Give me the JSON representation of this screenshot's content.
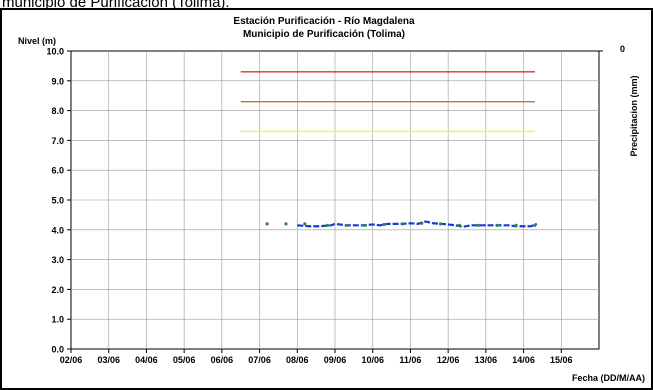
{
  "caption": "municipio de Purificación (Tolima).",
  "chart_data": {
    "type": "line",
    "title": "Estación Purificación - Río Magdalena",
    "subtitle": "Municipio de Purificación (Tolima)",
    "ylabel": "Nivel (m)",
    "y2label": "Precipitacion (mm)",
    "xlabel": "Fecha (DD/M/AA)",
    "ylim": [
      0,
      10
    ],
    "yticks": [
      "0.0",
      "1.0",
      "2.0",
      "3.0",
      "4.0",
      "5.0",
      "6.0",
      "7.0",
      "8.0",
      "9.0",
      "10.0"
    ],
    "y2_tick": "0",
    "x_categories": [
      "02/06",
      "03/06",
      "04/06",
      "05/06",
      "06/06",
      "07/06",
      "08/06",
      "09/06",
      "10/06",
      "11/06",
      "12/06",
      "13/06",
      "14/06",
      "15/06"
    ],
    "grid": true,
    "threshold_lines": [
      {
        "color": "#e03030",
        "value": 9.3,
        "start_day": 6.5,
        "end_day": 14.3
      },
      {
        "color": "#b07848",
        "value": 8.3,
        "start_day": 6.5,
        "end_day": 14.3
      },
      {
        "color": "#f2f24a",
        "value": 7.3,
        "start_day": 6.5,
        "end_day": 14.3
      }
    ],
    "series": [
      {
        "kind": "line",
        "color": "#1a3ad8",
        "x_day": [
          8.0,
          8.3,
          8.6,
          8.9,
          9.0,
          9.3,
          9.5,
          9.8,
          10.0,
          10.2,
          10.4,
          10.6,
          10.8,
          11.0,
          11.2,
          11.4,
          11.6,
          11.8,
          12.0,
          12.2,
          12.4,
          12.6,
          12.8,
          13.0,
          13.2,
          13.4,
          13.6,
          13.8,
          14.0,
          14.2,
          14.35
        ],
        "values": [
          4.15,
          4.12,
          4.12,
          4.15,
          4.2,
          4.15,
          4.15,
          4.15,
          4.18,
          4.15,
          4.2,
          4.2,
          4.2,
          4.22,
          4.2,
          4.28,
          4.22,
          4.2,
          4.18,
          4.15,
          4.1,
          4.15,
          4.15,
          4.15,
          4.15,
          4.15,
          4.15,
          4.12,
          4.12,
          4.12,
          4.2
        ]
      },
      {
        "kind": "scatter",
        "color": "#2e8b2e",
        "x_day": [
          7.2,
          7.7,
          8.2,
          8.8,
          9.3,
          9.8,
          10.3,
          10.8,
          11.3,
          11.8,
          12.3,
          12.8,
          13.3,
          13.8,
          14.3
        ],
        "values": [
          4.2,
          4.2,
          4.2,
          4.15,
          4.15,
          4.15,
          4.18,
          4.2,
          4.22,
          4.2,
          4.15,
          4.15,
          4.15,
          4.15,
          4.15
        ]
      }
    ]
  }
}
